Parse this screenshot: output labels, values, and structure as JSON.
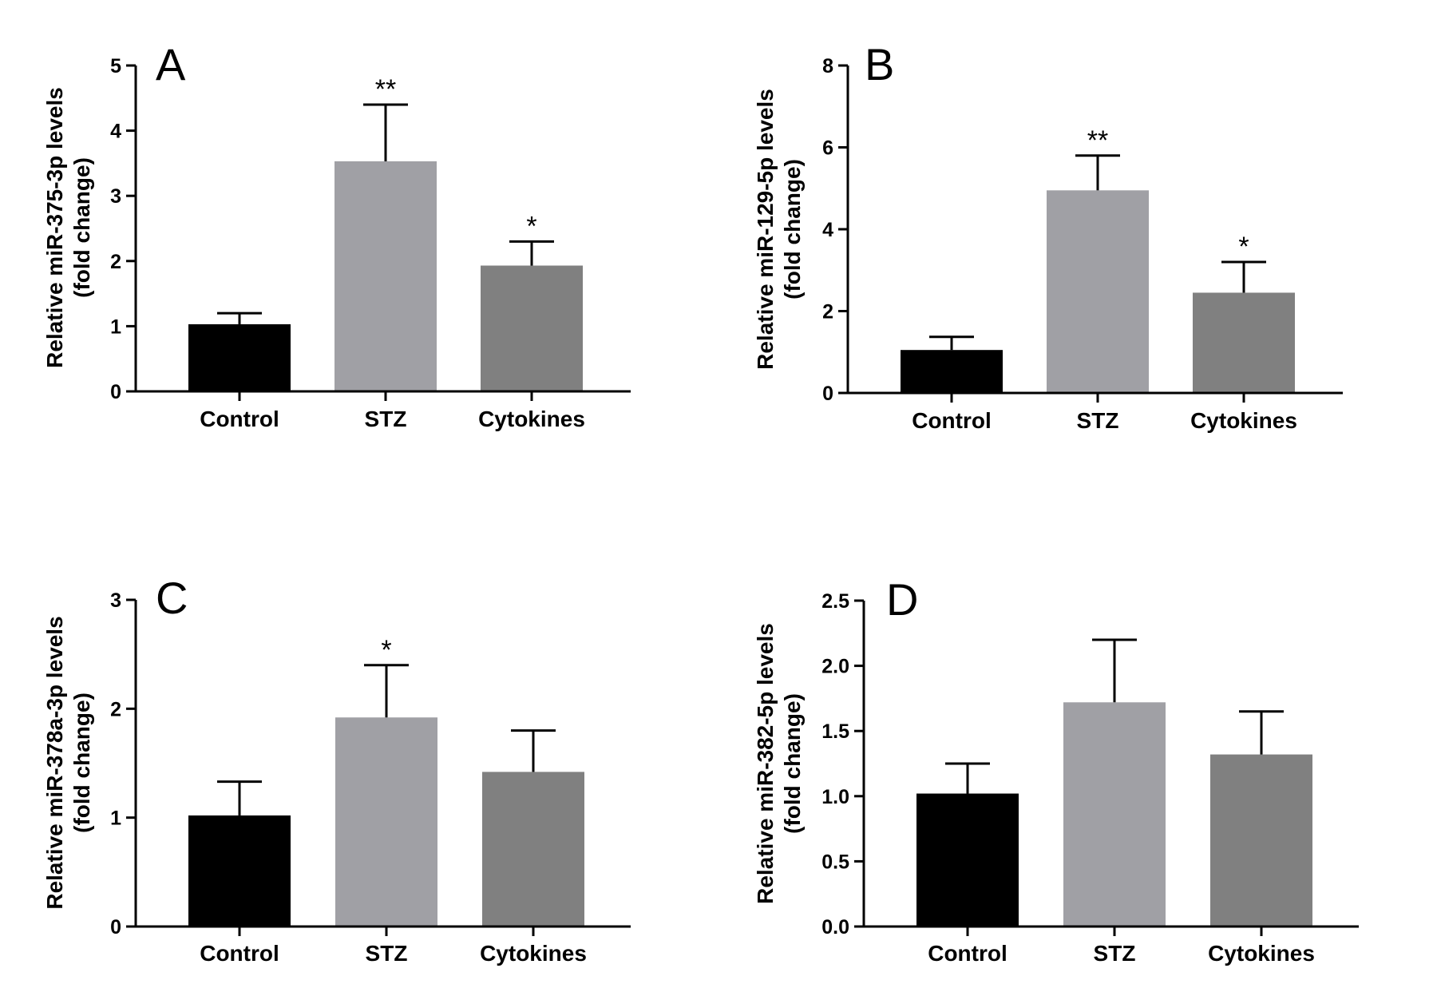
{
  "chart_data": [
    {
      "type": "bar",
      "panel_label": "A",
      "ylabel_line1": "Relative miR-375-3p levels",
      "ylabel_line2": "(fold change)",
      "categories": [
        "Control",
        "STZ",
        "Cytokines"
      ],
      "values": [
        1.03,
        3.53,
        1.93
      ],
      "error_upper": [
        1.2,
        4.4,
        2.3
      ],
      "significance": [
        "",
        "**",
        "*"
      ],
      "ylim": [
        0,
        5
      ],
      "yticks": [
        0,
        1,
        2,
        3,
        4,
        5
      ],
      "ytick_labels": [
        "0",
        "1",
        "2",
        "3",
        "4",
        "5"
      ],
      "bar_colors": [
        "#000000",
        "#a0a0a5",
        "#808080"
      ],
      "grid": false
    },
    {
      "type": "bar",
      "panel_label": "B",
      "ylabel_line1": "Relative miR-129-5p levels",
      "ylabel_line2": "(fold change)",
      "categories": [
        "Control",
        "STZ",
        "Cytokines"
      ],
      "values": [
        1.05,
        4.95,
        2.45
      ],
      "error_upper": [
        1.37,
        5.8,
        3.2
      ],
      "significance": [
        "",
        "**",
        "*"
      ],
      "ylim": [
        0,
        8
      ],
      "yticks": [
        0,
        2,
        4,
        6,
        8
      ],
      "ytick_labels": [
        "0",
        "2",
        "4",
        "6",
        "8"
      ],
      "bar_colors": [
        "#000000",
        "#a0a0a5",
        "#808080"
      ],
      "grid": false
    },
    {
      "type": "bar",
      "panel_label": "C",
      "ylabel_line1": "Relative miR-378a-3p levels",
      "ylabel_line2": "(fold change)",
      "categories": [
        "Control",
        "STZ",
        "Cytokines"
      ],
      "values": [
        1.02,
        1.92,
        1.42
      ],
      "error_upper": [
        1.33,
        2.4,
        1.8
      ],
      "significance": [
        "",
        "*",
        ""
      ],
      "ylim": [
        0,
        3
      ],
      "yticks": [
        0,
        1,
        2,
        3
      ],
      "ytick_labels": [
        "0",
        "1",
        "2",
        "3"
      ],
      "bar_colors": [
        "#000000",
        "#a0a0a5",
        "#808080"
      ],
      "grid": false
    },
    {
      "type": "bar",
      "panel_label": "D",
      "ylabel_line1": "Relative miR-382-5p levels",
      "ylabel_line2": "(fold change)",
      "categories": [
        "Control",
        "STZ",
        "Cytokines"
      ],
      "values": [
        1.02,
        1.72,
        1.32
      ],
      "error_upper": [
        1.25,
        2.2,
        1.65
      ],
      "significance": [
        "",
        "",
        ""
      ],
      "ylim": [
        0,
        2.5
      ],
      "yticks": [
        0,
        0.5,
        1.0,
        1.5,
        2.0,
        2.5
      ],
      "ytick_labels": [
        "0.0",
        "0.5",
        "1.0",
        "1.5",
        "2.0",
        "2.5"
      ],
      "bar_colors": [
        "#000000",
        "#a0a0a5",
        "#808080"
      ],
      "grid": false
    }
  ]
}
